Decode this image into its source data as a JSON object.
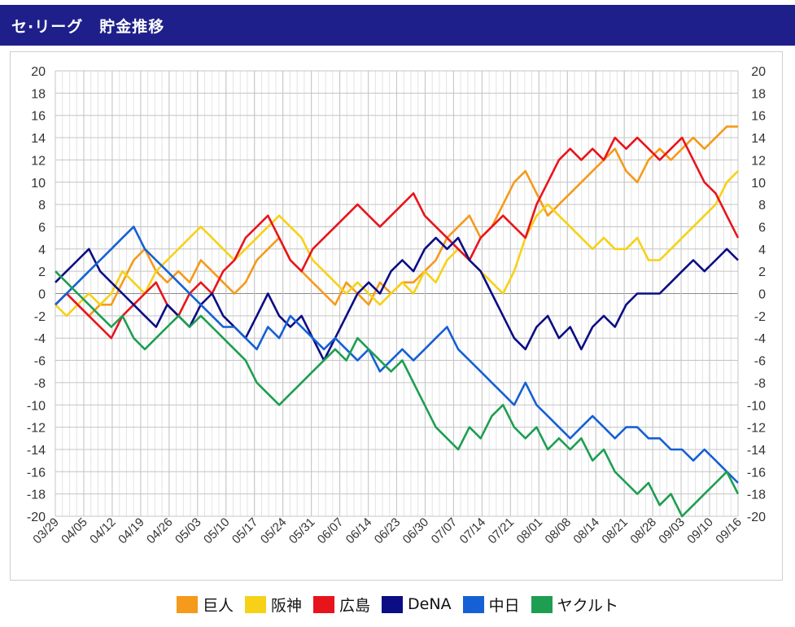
{
  "header": {
    "title": "セ·リーグ　貯金推移"
  },
  "chart_data": {
    "type": "line",
    "title": "セ·リーグ　貯金推移",
    "xlabel": "",
    "ylabel": "",
    "ylim": [
      -20,
      20
    ],
    "y_ticks": [
      20,
      18,
      16,
      14,
      12,
      10,
      8,
      6,
      4,
      2,
      0,
      -2,
      -4,
      -6,
      -8,
      -10,
      -12,
      -14,
      -16,
      -18,
      -20
    ],
    "grid": true,
    "legend_position": "bottom",
    "x_tick_labels": [
      "03/29",
      "04/05",
      "04/12",
      "04/19",
      "04/26",
      "05/03",
      "05/10",
      "05/17",
      "05/24",
      "05/31",
      "06/07",
      "06/14",
      "06/23",
      "06/30",
      "07/07",
      "07/14",
      "07/21",
      "08/01",
      "08/08",
      "08/14",
      "08/21",
      "08/28",
      "09/03",
      "09/10",
      "09/16"
    ],
    "series": [
      {
        "name": "巨人",
        "color": "#f59a1a",
        "values": [
          -1,
          0,
          -1,
          -2,
          -1,
          -1,
          1,
          3,
          4,
          2,
          1,
          2,
          1,
          3,
          2,
          1,
          0,
          1,
          3,
          4,
          5,
          3,
          2,
          1,
          0,
          -1,
          1,
          0,
          -1,
          1,
          0,
          1,
          1,
          2,
          3,
          5,
          6,
          7,
          5,
          6,
          8,
          10,
          11,
          9,
          7,
          8,
          9,
          10,
          11,
          12,
          13,
          11,
          10,
          12,
          13,
          12,
          13,
          14,
          13,
          14,
          15,
          15
        ]
      },
      {
        "name": "阪神",
        "color": "#f7d117",
        "values": [
          -1,
          -2,
          -1,
          0,
          -1,
          0,
          2,
          1,
          0,
          2,
          3,
          4,
          5,
          6,
          5,
          4,
          3,
          4,
          5,
          6,
          7,
          6,
          5,
          3,
          2,
          1,
          0,
          1,
          0,
          -1,
          0,
          1,
          0,
          2,
          1,
          3,
          4,
          3,
          2,
          1,
          0,
          2,
          5,
          7,
          8,
          7,
          6,
          5,
          4,
          5,
          4,
          4,
          5,
          3,
          3,
          4,
          5,
          6,
          7,
          8,
          10,
          11
        ]
      },
      {
        "name": "広島",
        "color": "#e8141c",
        "values": [
          -1,
          0,
          -1,
          -2,
          -3,
          -4,
          -2,
          -1,
          0,
          1,
          -1,
          -2,
          0,
          1,
          0,
          2,
          3,
          5,
          6,
          7,
          5,
          3,
          2,
          4,
          5,
          6,
          7,
          8,
          7,
          6,
          7,
          8,
          9,
          7,
          6,
          5,
          4,
          3,
          5,
          6,
          7,
          6,
          5,
          8,
          10,
          12,
          13,
          12,
          13,
          12,
          14,
          13,
          14,
          13,
          12,
          13,
          14,
          12,
          10,
          9,
          7,
          5
        ]
      },
      {
        "name": "DeNA",
        "color": "#0b0d84",
        "values": [
          1,
          2,
          3,
          4,
          2,
          1,
          0,
          -1,
          -2,
          -3,
          -1,
          -2,
          -3,
          -1,
          0,
          -2,
          -3,
          -4,
          -2,
          0,
          -2,
          -3,
          -2,
          -4,
          -6,
          -4,
          -2,
          0,
          1,
          0,
          2,
          3,
          2,
          4,
          5,
          4,
          5,
          3,
          2,
          0,
          -2,
          -4,
          -5,
          -3,
          -2,
          -4,
          -3,
          -5,
          -3,
          -2,
          -3,
          -1,
          0,
          0,
          0,
          1,
          2,
          3,
          2,
          3,
          4,
          3
        ]
      },
      {
        "name": "中日",
        "color": "#1560d4",
        "values": [
          -1,
          0,
          1,
          2,
          3,
          4,
          5,
          6,
          4,
          3,
          2,
          1,
          0,
          -1,
          -2,
          -3,
          -3,
          -4,
          -5,
          -3,
          -4,
          -2,
          -3,
          -4,
          -5,
          -4,
          -5,
          -6,
          -5,
          -7,
          -6,
          -5,
          -6,
          -5,
          -4,
          -3,
          -5,
          -6,
          -7,
          -8,
          -9,
          -10,
          -8,
          -10,
          -11,
          -12,
          -13,
          -12,
          -11,
          -12,
          -13,
          -12,
          -12,
          -13,
          -13,
          -14,
          -14,
          -15,
          -14,
          -15,
          -16,
          -17
        ]
      },
      {
        "name": "ヤクルト",
        "color": "#1e9e51",
        "values": [
          2,
          1,
          0,
          -1,
          -2,
          -3,
          -2,
          -4,
          -5,
          -4,
          -3,
          -2,
          -3,
          -2,
          -3,
          -4,
          -5,
          -6,
          -8,
          -9,
          -10,
          -9,
          -8,
          -7,
          -6,
          -5,
          -6,
          -4,
          -5,
          -6,
          -7,
          -6,
          -8,
          -10,
          -12,
          -13,
          -14,
          -12,
          -13,
          -11,
          -10,
          -12,
          -13,
          -12,
          -14,
          -13,
          -14,
          -13,
          -15,
          -14,
          -16,
          -17,
          -18,
          -17,
          -19,
          -18,
          -20,
          -19,
          -18,
          -17,
          -16,
          -18
        ]
      }
    ]
  }
}
